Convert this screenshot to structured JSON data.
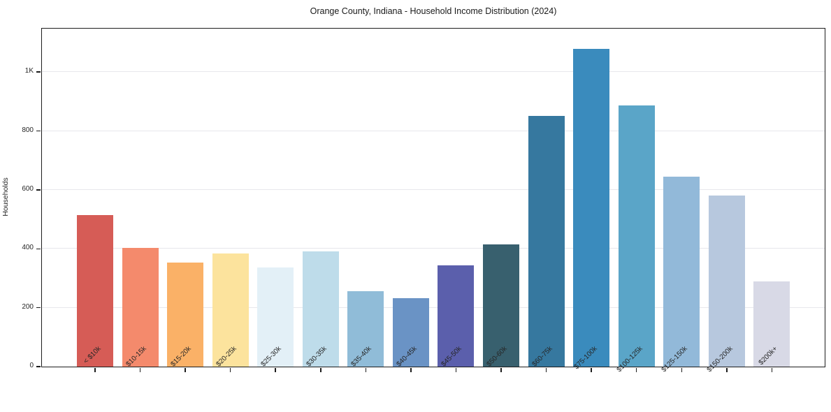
{
  "chart_data": {
    "type": "bar",
    "title": "Orange County, Indiana - Household Income Distribution (2024)",
    "xlabel": "",
    "ylabel": "Households",
    "categories": [
      "< $10k",
      "$10-15k",
      "$15-20k",
      "$20-25k",
      "$25-30k",
      "$30-35k",
      "$35-40k",
      "$40-45k",
      "$45-50k",
      "$50-60k",
      "$60-75k",
      "$75-100k",
      "$100-125k",
      "$125-150k",
      "$150-200k",
      "$200k+"
    ],
    "values": [
      515,
      402,
      353,
      385,
      336,
      391,
      256,
      232,
      344,
      416,
      852,
      1078,
      886,
      646,
      580,
      289
    ],
    "bar_colors": [
      "#d65c56",
      "#f48a6c",
      "#fab167",
      "#fce39d",
      "#e3f0f7",
      "#bedcea",
      "#90bcd8",
      "#6a93c5",
      "#5b5fac",
      "#38606e",
      "#36789f",
      "#3a8bbd",
      "#5aa5c8",
      "#92b9d9",
      "#b7c8de",
      "#d8d9e6"
    ],
    "ylim": [
      0,
      1145
    ],
    "yticks": [
      {
        "value": 0,
        "label": "0"
      },
      {
        "value": 200,
        "label": "200"
      },
      {
        "value": 400,
        "label": "400"
      },
      {
        "value": 600,
        "label": "600"
      },
      {
        "value": 800,
        "label": "800"
      },
      {
        "value": 1000,
        "label": "1K"
      }
    ],
    "grid": "horizontal",
    "legend": "none",
    "axis_color": "#1c1c1c",
    "grid_color": "#e7e7ec"
  }
}
